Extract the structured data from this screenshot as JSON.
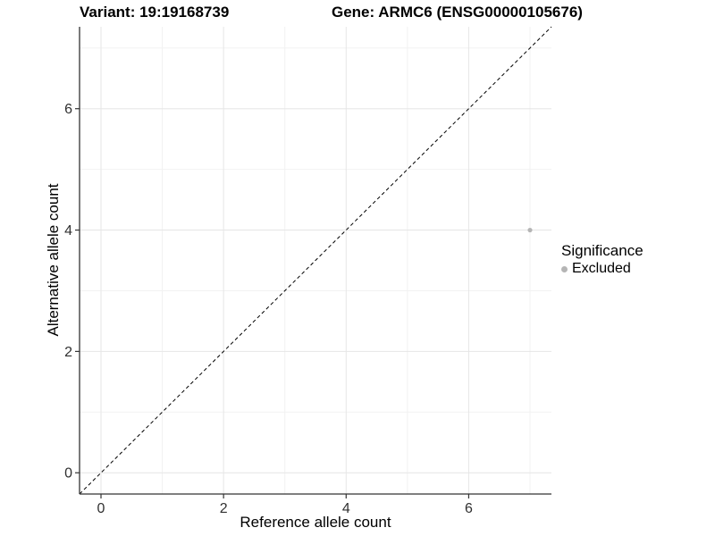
{
  "titles": {
    "variant": "Variant: 19:19168739",
    "gene": "Gene: ARMC6 (ENSG00000105676)"
  },
  "chart_data": {
    "type": "scatter",
    "title": "Variant: 19:19168739  |  Gene: ARMC6 (ENSG00000105676)",
    "xlabel": "Reference allele count",
    "ylabel": "Alternative allele count",
    "xlim": [
      -0.35,
      7.35
    ],
    "ylim": [
      -0.35,
      7.35
    ],
    "x_ticks": [
      0,
      2,
      4,
      6
    ],
    "y_ticks": [
      0,
      2,
      4,
      6
    ],
    "minor_gridlines": [
      1,
      3,
      5,
      7
    ],
    "grid": true,
    "reference_line": {
      "type": "identity y=x",
      "style": "dashed",
      "color": "#000000"
    },
    "series": [
      {
        "name": "Excluded",
        "color": "#b5b5b5",
        "points": [
          {
            "x": 7,
            "y": 4
          }
        ]
      }
    ],
    "legend": {
      "title": "Significance",
      "position": "right",
      "entries": [
        {
          "label": "Excluded",
          "color": "#b5b5b5"
        }
      ]
    }
  },
  "colors": {
    "background": "#ffffff",
    "grid_major": "#e6e6e6",
    "grid_minor": "#f2f2f2",
    "axis_line": "#333333",
    "tick_label": "#303030",
    "point": "#b5b5b5",
    "reference_line": "#000000"
  }
}
